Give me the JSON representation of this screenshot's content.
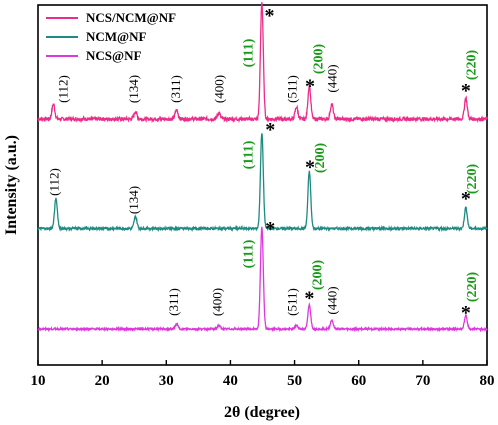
{
  "chart_data": {
    "type": "line",
    "xlabel": "2θ (degree)",
    "ylabel": "Intensity (a.u.)",
    "xlim": [
      10,
      80
    ],
    "xticks": [
      10,
      20,
      30,
      40,
      50,
      60,
      70,
      80
    ],
    "yticks_shown": false,
    "legend_position": "top-left",
    "series": [
      {
        "name": "NCS/NCM@NF",
        "color": "#ec2c8a",
        "baseline": 0.82,
        "noise": 0.012,
        "peaks": [
          {
            "x": 12.4,
            "h": 0.05
          },
          {
            "x": 25.2,
            "h": 0.025
          },
          {
            "x": 31.6,
            "h": 0.03
          },
          {
            "x": 38.2,
            "h": 0.02
          },
          {
            "x": 44.9,
            "h": 0.39
          },
          {
            "x": 50.3,
            "h": 0.04
          },
          {
            "x": 52.3,
            "h": 0.11
          },
          {
            "x": 55.8,
            "h": 0.05
          },
          {
            "x": 76.7,
            "h": 0.07
          }
        ]
      },
      {
        "name": "NCM@NF",
        "color": "#1e8a82",
        "baseline": 0.455,
        "noise": 0.008,
        "peaks": [
          {
            "x": 12.8,
            "h": 0.1
          },
          {
            "x": 25.2,
            "h": 0.04
          },
          {
            "x": 44.9,
            "h": 0.32
          },
          {
            "x": 52.3,
            "h": 0.19
          },
          {
            "x": 76.7,
            "h": 0.07
          }
        ]
      },
      {
        "name": "NCS@NF",
        "color": "#dd37dd",
        "baseline": 0.12,
        "noise": 0.006,
        "peaks": [
          {
            "x": 31.6,
            "h": 0.016
          },
          {
            "x": 38.2,
            "h": 0.012
          },
          {
            "x": 44.9,
            "h": 0.34
          },
          {
            "x": 50.3,
            "h": 0.012
          },
          {
            "x": 52.3,
            "h": 0.08
          },
          {
            "x": 55.8,
            "h": 0.03
          },
          {
            "x": 76.7,
            "h": 0.045
          }
        ]
      }
    ],
    "annotations": [
      {
        "text": "(112)",
        "x": 14.0,
        "y": 0.92,
        "style": "black",
        "rotate": true
      },
      {
        "text": "(134)",
        "x": 25.0,
        "y": 0.92,
        "style": "black",
        "rotate": true
      },
      {
        "text": "(311)",
        "x": 31.5,
        "y": 0.92,
        "style": "black",
        "rotate": true
      },
      {
        "text": "(400)",
        "x": 38.3,
        "y": 0.92,
        "style": "black",
        "rotate": true
      },
      {
        "text": "(111)",
        "x": 42.8,
        "y": 1.04,
        "style": "green",
        "rotate": true
      },
      {
        "text": "*",
        "x": 46.1,
        "y": 1.17,
        "style": "star",
        "rotate": false
      },
      {
        "text": "(511)",
        "x": 49.7,
        "y": 0.92,
        "style": "black",
        "rotate": true
      },
      {
        "text": "*",
        "x": 52.4,
        "y": 0.935,
        "style": "star",
        "rotate": false
      },
      {
        "text": "(200)",
        "x": 53.7,
        "y": 1.02,
        "style": "green",
        "rotate": true
      },
      {
        "text": "(440)",
        "x": 55.9,
        "y": 0.955,
        "style": "black",
        "rotate": true
      },
      {
        "text": "*",
        "x": 76.7,
        "y": 0.92,
        "style": "star",
        "rotate": false
      },
      {
        "text": "(220)",
        "x": 77.6,
        "y": 1.0,
        "style": "green",
        "rotate": true
      },
      {
        "text": "(112)",
        "x": 12.6,
        "y": 0.61,
        "style": "black",
        "rotate": true
      },
      {
        "text": "(134)",
        "x": 25.0,
        "y": 0.55,
        "style": "black",
        "rotate": true
      },
      {
        "text": "(111)",
        "x": 42.8,
        "y": 0.7,
        "style": "green",
        "rotate": true
      },
      {
        "text": "*",
        "x": 46.2,
        "y": 0.79,
        "style": "star",
        "rotate": false
      },
      {
        "text": "*",
        "x": 52.4,
        "y": 0.665,
        "style": "star",
        "rotate": false
      },
      {
        "text": "(200)",
        "x": 54.0,
        "y": 0.69,
        "style": "green",
        "rotate": true
      },
      {
        "text": "*",
        "x": 76.7,
        "y": 0.56,
        "style": "star",
        "rotate": false
      },
      {
        "text": "(220)",
        "x": 77.7,
        "y": 0.62,
        "style": "green",
        "rotate": true
      },
      {
        "text": "(311)",
        "x": 31.2,
        "y": 0.21,
        "style": "black",
        "rotate": true
      },
      {
        "text": "(400)",
        "x": 38.0,
        "y": 0.21,
        "style": "black",
        "rotate": true
      },
      {
        "text": "(111)",
        "x": 42.8,
        "y": 0.37,
        "style": "green",
        "rotate": true
      },
      {
        "text": "*",
        "x": 46.2,
        "y": 0.46,
        "style": "star",
        "rotate": false
      },
      {
        "text": "(511)",
        "x": 49.7,
        "y": 0.21,
        "style": "black",
        "rotate": true
      },
      {
        "text": "*",
        "x": 52.3,
        "y": 0.228,
        "style": "star",
        "rotate": false
      },
      {
        "text": "(200)",
        "x": 53.6,
        "y": 0.3,
        "style": "green",
        "rotate": true
      },
      {
        "text": "(440)",
        "x": 55.9,
        "y": 0.215,
        "style": "black",
        "rotate": true
      },
      {
        "text": "*",
        "x": 76.7,
        "y": 0.18,
        "style": "star",
        "rotate": false
      },
      {
        "text": "(220)",
        "x": 77.7,
        "y": 0.26,
        "style": "green",
        "rotate": true
      }
    ]
  }
}
